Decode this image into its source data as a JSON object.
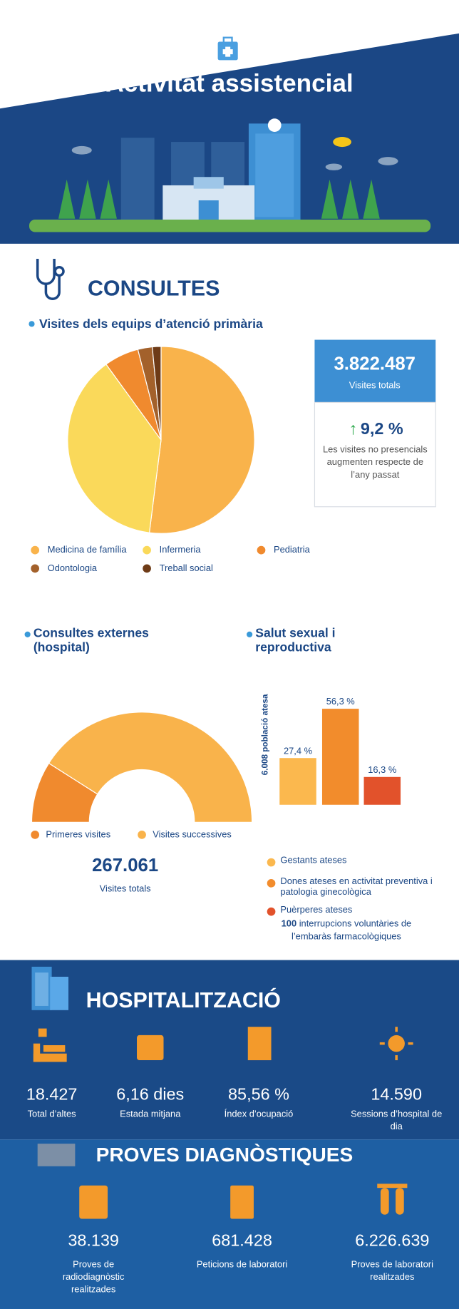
{
  "header": {
    "title": "Activitat assistencial"
  },
  "consultes": {
    "title": "CONSULTES",
    "primaria": {
      "heading": "Visites dels equips d’atenció primària",
      "total": "3.822.487",
      "total_label": "Visites totals",
      "change": "9,2 %",
      "change_label": "Les visites no presencials augmenten respecte de l’any passat"
    },
    "externes": {
      "heading": "Consultes externes (hospital)",
      "total": "267.061",
      "total_label": "Visites totals"
    },
    "salut": {
      "heading": "Salut sexual i reproductiva",
      "ive_number": "100",
      "ive_text": "interrupcions voluntàries de l’embaràs farmacològiques"
    }
  },
  "hospitalitzacio": {
    "title": "HOSPITALITZACIÓ",
    "stats": [
      {
        "value": "18.427",
        "label": "Total d’altes"
      },
      {
        "value": "6,16 dies",
        "label": "Estada mitjana"
      },
      {
        "value": "85,56 %",
        "label": "Índex d’ocupació"
      },
      {
        "value": "14.590",
        "label": "Sessions d’hospital de dia"
      }
    ]
  },
  "proves": {
    "title": "PROVES DIAGNÒSTIQUES",
    "stats": [
      {
        "value": "38.139",
        "label": "Proves de radiodiagnòstic realitzades"
      },
      {
        "value": "681.428",
        "label": "Peticions de laboratori"
      },
      {
        "value": "6.226.639",
        "label": "Proves de laboratori realitzades"
      }
    ]
  },
  "chart_data": [
    {
      "type": "pie",
      "categories": [
        "Medicina de família",
        "Infermeria",
        "Pediatria",
        "Odontologia",
        "Treball social"
      ],
      "values": [
        52,
        38,
        6,
        2.5,
        1.5
      ],
      "colors": [
        "#f9b34b",
        "#fad95a",
        "#f08a2e",
        "#a3612b",
        "#6e3b17"
      ]
    },
    {
      "type": "half-donut",
      "categories": [
        "Primeres visites",
        "Visites successives"
      ],
      "values": [
        18,
        82
      ],
      "colors": [
        "#f08a2e",
        "#f9b34b"
      ]
    },
    {
      "type": "bar",
      "ylabel": "6.008 població atesa",
      "categories": [
        "Gestants ateses",
        "Dones ateses en activitat preventiva i patologia ginecològica",
        "Puèrperes ateses"
      ],
      "values": [
        27.4,
        56.3,
        16.3
      ],
      "value_labels": [
        "27,4 %",
        "56,3 %",
        "16,3 %"
      ],
      "colors": [
        "#fbb84e",
        "#f28c2c",
        "#e2522b"
      ]
    }
  ]
}
